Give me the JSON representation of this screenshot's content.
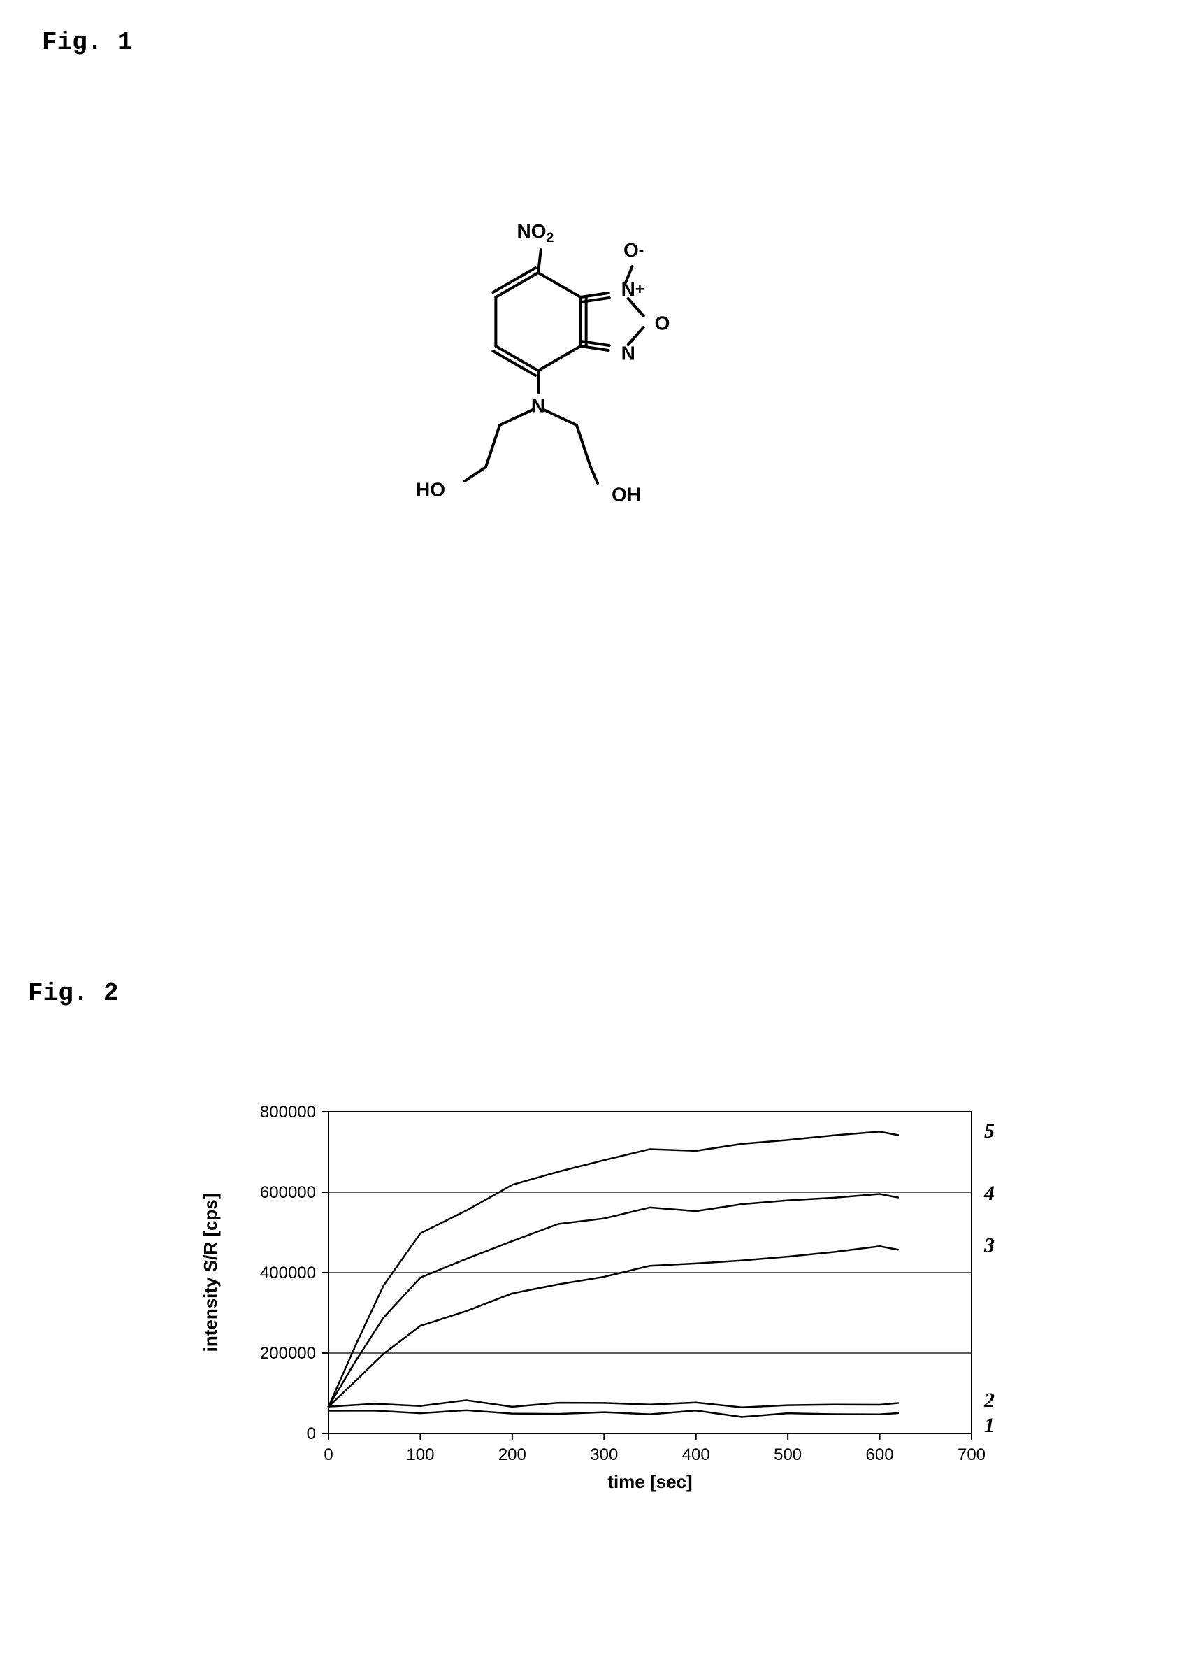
{
  "fig1": {
    "label": "Fig. 1",
    "molecule": {
      "atom_labels": {
        "NO2": "NO₂",
        "O_minus": "O₋",
        "N_plus": "N₊",
        "O_ring": "O",
        "N_ring": "N",
        "N_amine": "N",
        "HO_left": "HO",
        "OH_right": "OH"
      },
      "bond_color": "#000000",
      "bond_width": 4,
      "font_size": 28,
      "font_family": "Arial, Helvetica, sans-serif"
    }
  },
  "fig2": {
    "label": "Fig. 2",
    "chart": {
      "type": "line",
      "xlabel": "time [sec]",
      "ylabel": "intensity S/R [cps]",
      "xlim": [
        0,
        700
      ],
      "ylim": [
        0,
        800000
      ],
      "xtick_step": 100,
      "ytick_step": 200000,
      "xticks": [
        0,
        100,
        200,
        300,
        400,
        500,
        600,
        700
      ],
      "yticks": [
        0,
        200000,
        400000,
        600000,
        800000
      ],
      "background_color": "#ffffff",
      "grid_color": "#000000",
      "grid_width": 1.2,
      "axis_color": "#000000",
      "axis_width": 2,
      "line_color": "#000000",
      "line_width": 2.5,
      "label_fontsize": 26,
      "tick_fontsize": 24,
      "series": [
        {
          "name": "1",
          "label": "1",
          "x": [
            0,
            50,
            100,
            150,
            200,
            250,
            300,
            350,
            400,
            450,
            500,
            550,
            600,
            620
          ],
          "y": [
            60000,
            55000,
            52000,
            50000,
            55000,
            50000,
            52000,
            48000,
            50000,
            48000,
            50000,
            48000,
            46000,
            45000
          ]
        },
        {
          "name": "2",
          "label": "2",
          "x": [
            0,
            50,
            100,
            150,
            200,
            250,
            300,
            350,
            400,
            450,
            500,
            550,
            600,
            620
          ],
          "y": [
            70000,
            72000,
            70000,
            75000,
            72000,
            78000,
            75000,
            72000,
            70000,
            72000,
            70000,
            72000,
            70000,
            70000
          ]
        },
        {
          "name": "3",
          "label": "3",
          "x": [
            0,
            30,
            60,
            100,
            150,
            200,
            250,
            300,
            350,
            400,
            450,
            500,
            550,
            600,
            620
          ],
          "y": [
            70000,
            130000,
            200000,
            260000,
            310000,
            350000,
            370000,
            390000,
            410000,
            430000,
            430000,
            440000,
            450000,
            460000,
            465000
          ]
        },
        {
          "name": "4",
          "label": "4",
          "x": [
            0,
            30,
            60,
            100,
            150,
            200,
            250,
            300,
            350,
            400,
            450,
            500,
            550,
            600,
            620
          ],
          "y": [
            70000,
            180000,
            290000,
            380000,
            440000,
            480000,
            520000,
            535000,
            555000,
            560000,
            570000,
            580000,
            585000,
            590000,
            595000
          ]
        },
        {
          "name": "5",
          "label": "5",
          "x": [
            0,
            30,
            60,
            100,
            150,
            200,
            250,
            300,
            350,
            400,
            450,
            500,
            550,
            600,
            620
          ],
          "y": [
            70000,
            220000,
            370000,
            490000,
            560000,
            620000,
            650000,
            680000,
            700000,
            710000,
            720000,
            730000,
            740000,
            745000,
            750000
          ]
        }
      ]
    }
  }
}
